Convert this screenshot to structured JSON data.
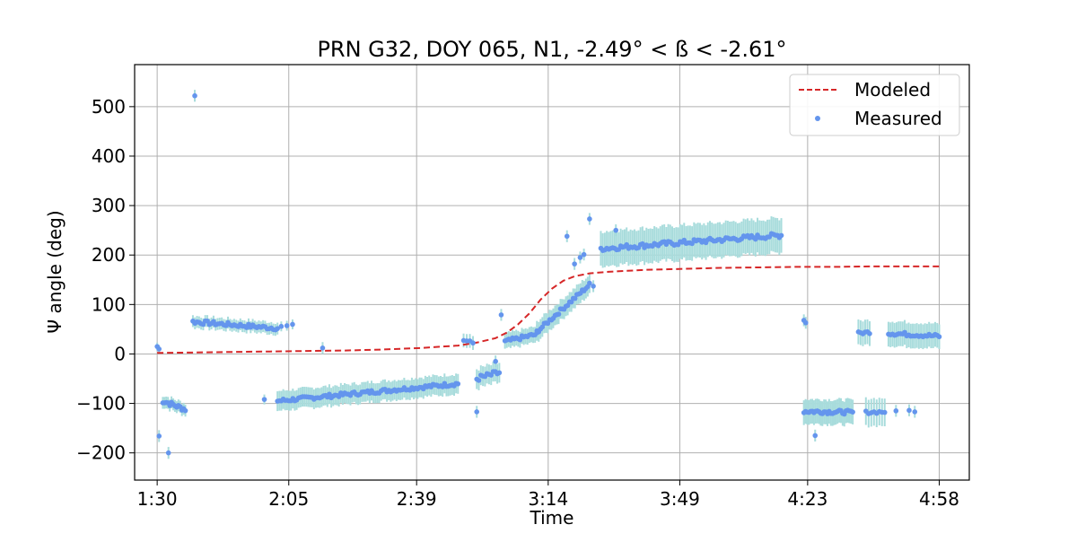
{
  "chart_data": {
    "type": "scatter",
    "title": "PRN G32, DOY 065, N1, -2.49° < ß < -2.61°",
    "xlabel": "Time",
    "ylabel": "Ψ angle (deg)",
    "x_unit": "minutes",
    "xlim": [
      84,
      306
    ],
    "ylim": [
      -255,
      585
    ],
    "x_ticks": [
      {
        "value": 90,
        "label": "1:30"
      },
      {
        "value": 125,
        "label": "2:05"
      },
      {
        "value": 159,
        "label": "2:39"
      },
      {
        "value": 194,
        "label": "3:14"
      },
      {
        "value": 229,
        "label": "3:49"
      },
      {
        "value": 263,
        "label": "4:23"
      },
      {
        "value": 298,
        "label": "4:58"
      }
    ],
    "y_ticks": [
      {
        "value": -200,
        "label": "−200"
      },
      {
        "value": -100,
        "label": "−100"
      },
      {
        "value": 0,
        "label": "0"
      },
      {
        "value": 100,
        "label": "100"
      },
      {
        "value": 200,
        "label": "200"
      },
      {
        "value": 300,
        "label": "300"
      },
      {
        "value": 400,
        "label": "400"
      },
      {
        "value": 500,
        "label": "500"
      }
    ],
    "grid": true,
    "legend": {
      "position": "top-right"
    },
    "colors": {
      "modeled": "#d62728",
      "measured": "#6495ed",
      "error_bar": "#a8dcdc"
    },
    "series": [
      {
        "name": "Modeled",
        "style": "dashed-line",
        "points": [
          [
            90,
            2
          ],
          [
            100,
            3
          ],
          [
            110,
            4
          ],
          [
            120,
            5
          ],
          [
            130,
            6
          ],
          [
            140,
            7
          ],
          [
            150,
            9
          ],
          [
            160,
            12
          ],
          [
            170,
            17
          ],
          [
            175,
            23
          ],
          [
            180,
            32
          ],
          [
            183,
            43
          ],
          [
            186,
            60
          ],
          [
            189,
            82
          ],
          [
            192,
            110
          ],
          [
            195,
            132
          ],
          [
            198,
            148
          ],
          [
            201,
            157
          ],
          [
            205,
            163
          ],
          [
            210,
            166
          ],
          [
            215,
            168
          ],
          [
            220,
            170
          ],
          [
            230,
            172
          ],
          [
            240,
            174
          ],
          [
            250,
            175
          ],
          [
            260,
            176
          ],
          [
            270,
            176
          ],
          [
            280,
            177
          ],
          [
            290,
            177
          ],
          [
            298,
            177
          ]
        ]
      },
      {
        "name": "Measured",
        "style": "points-with-error-bars",
        "segments": [
          {
            "x0": 90.0,
            "x1": 90.5,
            "n": 2,
            "y0": 15,
            "y1": 10,
            "err": 8,
            "noise": 0
          },
          {
            "x0": 91.5,
            "x1": 97.5,
            "n": 14,
            "y0": -95,
            "y1": -112,
            "err": 12,
            "noise": 5
          },
          {
            "x0": 99.5,
            "x1": 122.0,
            "n": 42,
            "y0": 65,
            "y1": 52,
            "err": 12,
            "noise": 4
          },
          {
            "x0": 123.0,
            "x1": 126.0,
            "n": 3,
            "y0": 55,
            "y1": 58,
            "err": 10,
            "noise": 2
          },
          {
            "x0": 118.5,
            "x1": 118.5,
            "n": 1,
            "y0": -92,
            "y1": -92,
            "err": 10,
            "noise": 0
          },
          {
            "x0": 122.0,
            "x1": 170.0,
            "n": 95,
            "y0": -95,
            "y1": -60,
            "err": 20,
            "noise": 4
          },
          {
            "x0": 171.5,
            "x1": 174.0,
            "n": 4,
            "y0": 28,
            "y1": 22,
            "err": 14,
            "noise": 3
          },
          {
            "x0": 175.0,
            "x1": 181.0,
            "n": 12,
            "y0": -50,
            "y1": -38,
            "err": 20,
            "noise": 6
          },
          {
            "x0": 182.5,
            "x1": 191.0,
            "n": 18,
            "y0": 25,
            "y1": 40,
            "err": 16,
            "noise": 4
          },
          {
            "x0": 191.0,
            "x1": 205.0,
            "n": 30,
            "y0": 45,
            "y1": 140,
            "err": 20,
            "noise": 4
          },
          {
            "x0": 208.0,
            "x1": 256.0,
            "n": 92,
            "y0": 213,
            "y1": 240,
            "err": 35,
            "noise": 5
          },
          {
            "x0": 262.0,
            "x1": 275.0,
            "n": 30,
            "y0": -116,
            "y1": -118,
            "err": 25,
            "noise": 4
          },
          {
            "x0": 278.5,
            "x1": 283.5,
            "n": 8,
            "y0": -118,
            "y1": -117,
            "err": 28,
            "noise": 3
          },
          {
            "x0": 276.5,
            "x1": 279.5,
            "n": 6,
            "y0": 42,
            "y1": 44,
            "err": 25,
            "noise": 3
          },
          {
            "x0": 284.5,
            "x1": 298.0,
            "n": 26,
            "y0": 42,
            "y1": 36,
            "err": 25,
            "noise": 4
          }
        ],
        "points": [
          [
            90.5,
            -166
          ],
          [
            93.0,
            -200
          ],
          [
            100.0,
            522
          ],
          [
            134.0,
            12
          ],
          [
            175.0,
            -117
          ],
          [
            180.0,
            -15
          ],
          [
            181.5,
            79
          ],
          [
            199.0,
            238
          ],
          [
            201.0,
            182
          ],
          [
            202.5,
            195
          ],
          [
            203.5,
            201
          ],
          [
            205.0,
            273
          ],
          [
            206.0,
            137
          ],
          [
            212.0,
            250
          ],
          [
            262.0,
            68
          ],
          [
            262.5,
            63
          ],
          [
            265.0,
            -165
          ],
          [
            286.5,
            -115
          ],
          [
            290.0,
            -114
          ],
          [
            291.5,
            -117
          ]
        ]
      }
    ]
  }
}
